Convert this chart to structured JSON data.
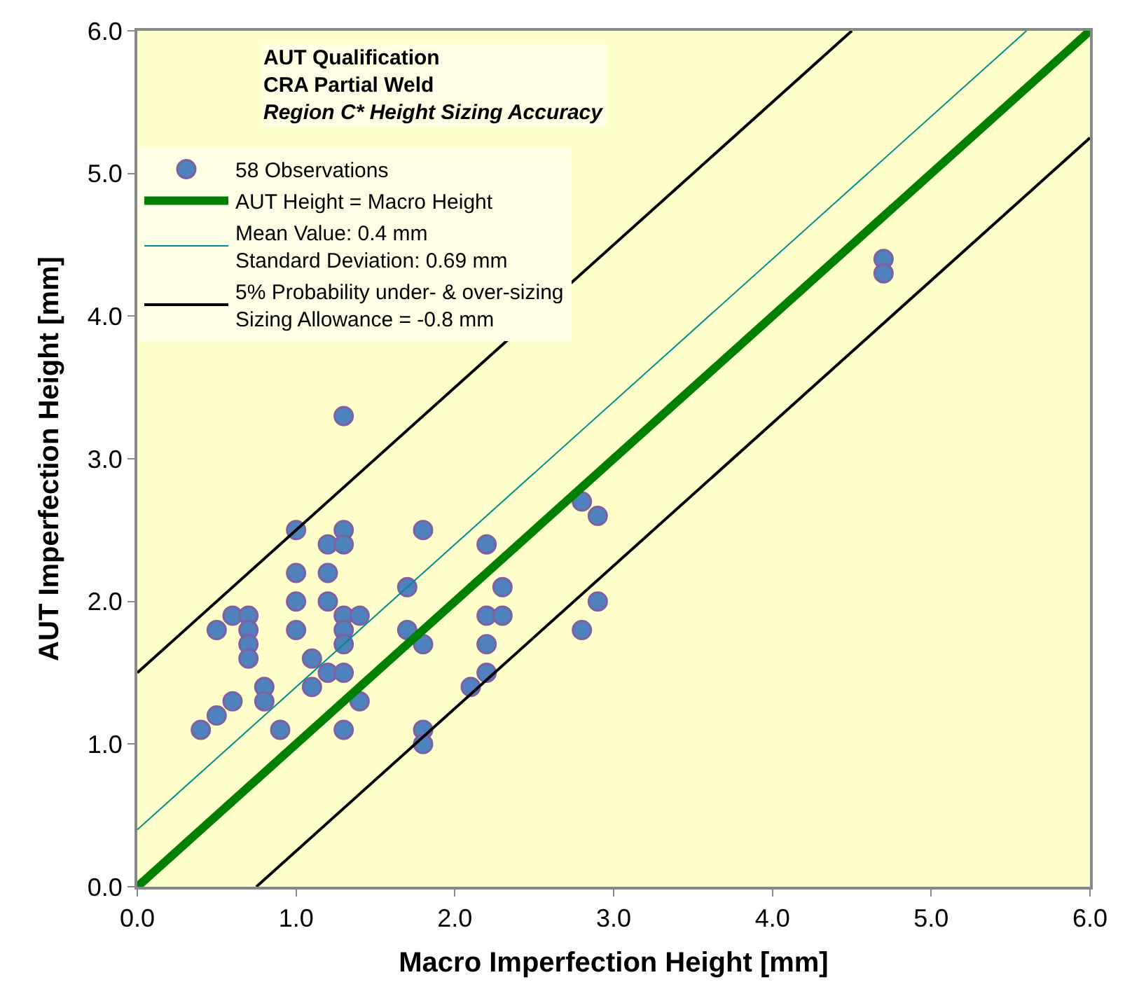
{
  "chart_data": {
    "type": "scatter",
    "title": "AUT Qualification\nCRA Partial Weld",
    "subtitle": "Region C* Height Sizing Accuracy",
    "xlabel": "Macro Imperfection Height [mm]",
    "ylabel": "AUT Imperfection Height [mm]",
    "xlim": [
      0,
      6
    ],
    "ylim": [
      0,
      6
    ],
    "xticks": [
      {
        "value": 0,
        "label": "0.0"
      },
      {
        "value": 1,
        "label": "1.0"
      },
      {
        "value": 2,
        "label": "2.0"
      },
      {
        "value": 3,
        "label": "3.0"
      },
      {
        "value": 4,
        "label": "4.0"
      },
      {
        "value": 5,
        "label": "5.0"
      },
      {
        "value": 6,
        "label": "6.0"
      }
    ],
    "yticks": [
      {
        "value": 0,
        "label": "0.0"
      },
      {
        "value": 1,
        "label": "1.0"
      },
      {
        "value": 2,
        "label": "2.0"
      },
      {
        "value": 3,
        "label": "3.0"
      },
      {
        "value": 4,
        "label": "4.0"
      },
      {
        "value": 5,
        "label": "5.0"
      },
      {
        "value": 6,
        "label": "6.0"
      }
    ],
    "grid": false,
    "legend": "top left",
    "series": [
      {
        "name": "58 Observations",
        "marker": "circle",
        "color": "#4f81bd",
        "x": [
          0.4,
          0.5,
          0.5,
          0.6,
          0.6,
          0.7,
          0.7,
          0.7,
          0.7,
          0.8,
          0.8,
          0.9,
          1.0,
          1.0,
          1.0,
          1.0,
          1.1,
          1.1,
          1.2,
          1.2,
          1.2,
          1.2,
          1.3,
          1.3,
          1.3,
          1.3,
          1.3,
          1.3,
          1.3,
          1.3,
          1.4,
          1.4,
          1.7,
          1.7,
          1.8,
          1.8,
          1.8,
          1.8,
          2.1,
          2.2,
          2.2,
          2.2,
          2.2,
          2.3,
          2.3,
          2.8,
          2.8,
          2.9,
          2.9,
          4.7,
          4.7
        ],
        "values": [
          1.1,
          1.2,
          1.8,
          1.9,
          1.3,
          1.9,
          1.8,
          1.7,
          1.6,
          1.4,
          1.3,
          1.1,
          2.5,
          2.2,
          2.0,
          1.8,
          1.6,
          1.4,
          2.4,
          2.2,
          2.0,
          1.5,
          3.3,
          2.5,
          2.4,
          1.9,
          1.8,
          1.7,
          1.5,
          1.1,
          1.9,
          1.3,
          2.1,
          1.8,
          2.5,
          1.7,
          1.1,
          1.0,
          1.4,
          2.4,
          1.9,
          1.7,
          1.5,
          2.1,
          1.9,
          2.7,
          1.8,
          2.6,
          2.0,
          4.4,
          4.3
        ]
      },
      {
        "name": "AUT Height = Macro Height",
        "type": "line",
        "color": "#008000",
        "x": [
          0,
          6
        ],
        "values": [
          0,
          6
        ]
      },
      {
        "name": "Mean Value: 0.4 mm\nStandard Deviation: 0.69 mm",
        "type": "line",
        "color": "#008b8b",
        "x": [
          0,
          5.6
        ],
        "values": [
          0.4,
          6
        ]
      },
      {
        "name": "5% Probability under- & over-sizing\nSizing Allowance = -0.8 mm",
        "type": "line",
        "color": "#000000",
        "x": [
          0,
          4.5
        ],
        "values": [
          1.5,
          6
        ]
      },
      {
        "type": "line",
        "color": "#000000",
        "x": [
          0.75,
          6
        ],
        "values": [
          0,
          5.25
        ]
      }
    ]
  }
}
